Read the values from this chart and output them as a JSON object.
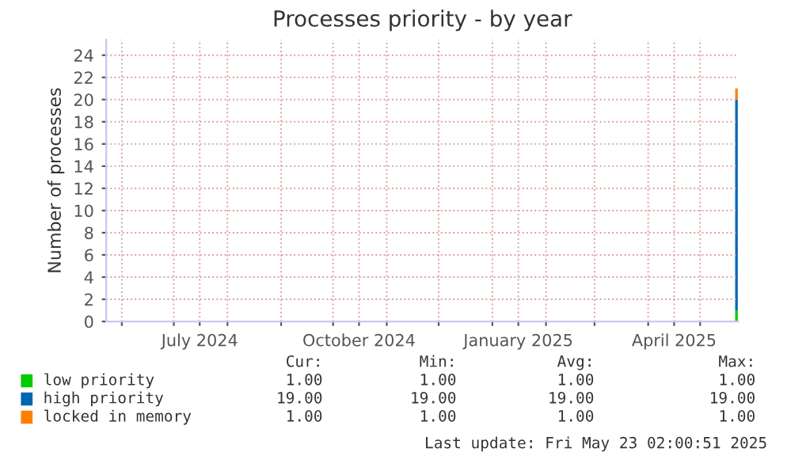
{
  "chart_data": {
    "type": "bar",
    "stacked": true,
    "title": "Processes priority - by year",
    "ylabel": "Number of processes",
    "x": [
      "2025-05-22"
    ],
    "series": [
      {
        "name": "low priority",
        "color": "#00cc00",
        "values": [
          1
        ]
      },
      {
        "name": "high priority",
        "color": "#0066b3",
        "values": [
          19
        ]
      },
      {
        "name": "locked in memory",
        "color": "#ff8000",
        "values": [
          1
        ]
      }
    ],
    "xlim": [
      "2024-05-23",
      "2025-05-23"
    ],
    "xticks": [
      {
        "value": "2024-06-01",
        "label": null
      },
      {
        "value": "2024-07-01",
        "label": null
      },
      {
        "value": "2024-07-16",
        "label": "July 2024"
      },
      {
        "value": "2024-08-01",
        "label": null
      },
      {
        "value": "2024-09-01",
        "label": null
      },
      {
        "value": "2024-10-01",
        "label": null
      },
      {
        "value": "2024-10-16",
        "label": "October 2024"
      },
      {
        "value": "2024-11-01",
        "label": null
      },
      {
        "value": "2024-12-01",
        "label": null
      },
      {
        "value": "2025-01-01",
        "label": null
      },
      {
        "value": "2025-01-16",
        "label": "January 2025"
      },
      {
        "value": "2025-02-01",
        "label": null
      },
      {
        "value": "2025-03-01",
        "label": null
      },
      {
        "value": "2025-04-01",
        "label": null
      },
      {
        "value": "2025-04-16",
        "label": "April 2025"
      },
      {
        "value": "2025-05-01",
        "label": null
      }
    ],
    "ylim": [
      0,
      25.4
    ],
    "yticks": [
      0,
      2,
      4,
      6,
      8,
      10,
      12,
      14,
      16,
      18,
      20,
      22,
      24
    ],
    "grid": true,
    "legend": "bottom",
    "annotations": [
      "Cur:",
      "Min:",
      "Avg:",
      "Max:",
      "1.00",
      "1.00",
      "1.00",
      "1.00",
      "19.00",
      "19.00",
      "19.00",
      "19.00",
      "1.00",
      "1.00",
      "1.00",
      "1.00",
      "Last update: Fri May 23 02:00:51 2025"
    ]
  }
}
